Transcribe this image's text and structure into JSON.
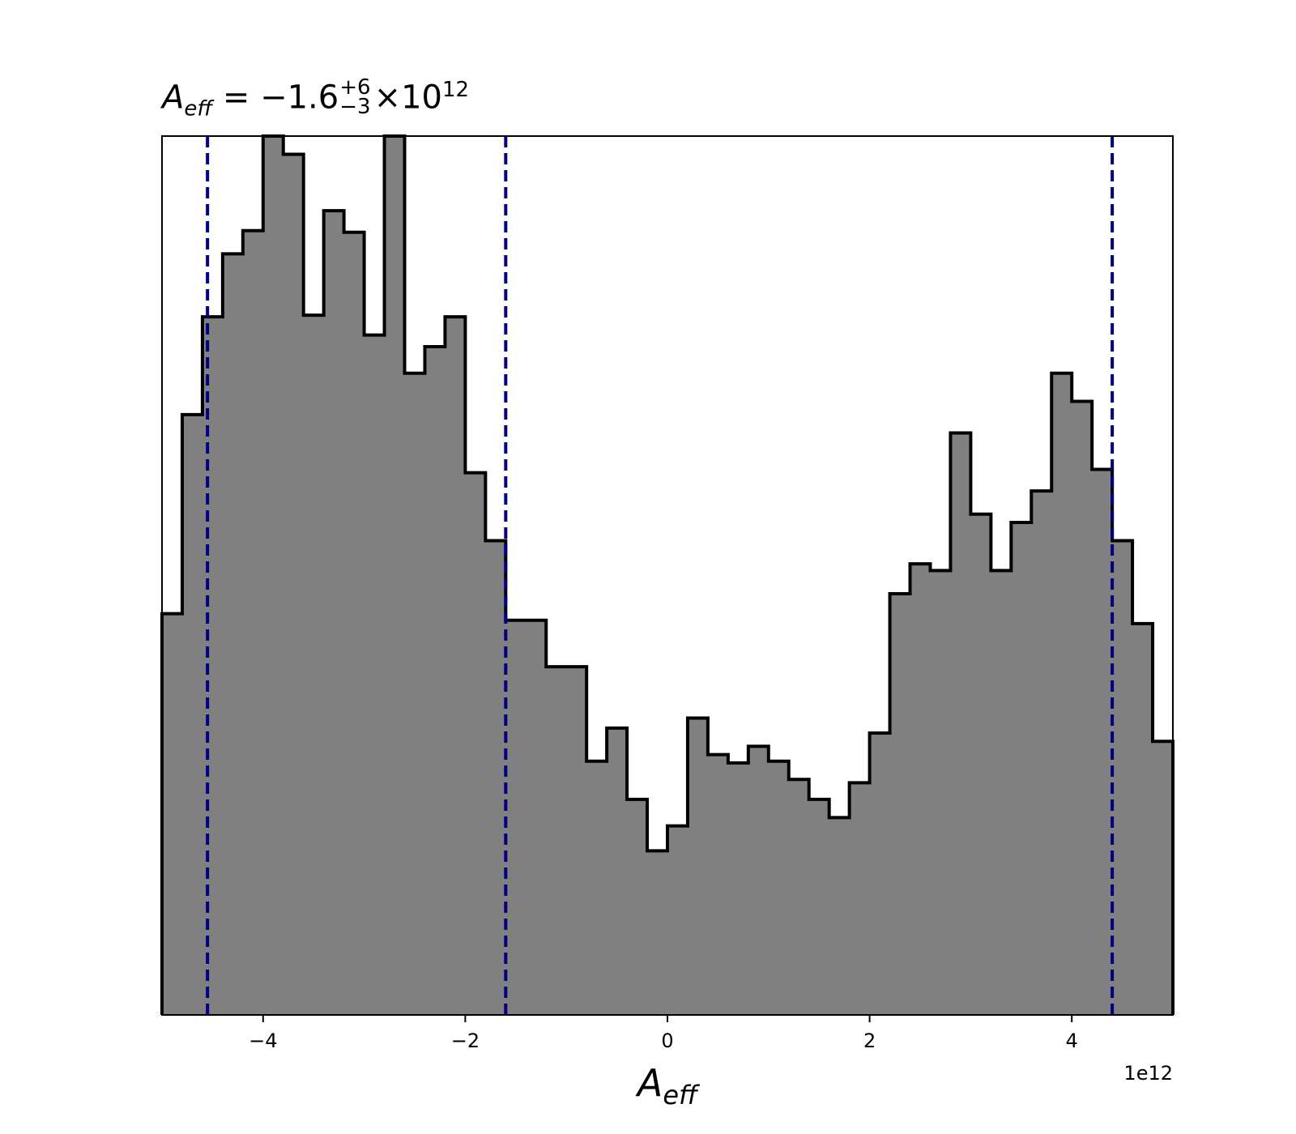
{
  "title": {
    "symbol": "A",
    "symbol_sub": "eff",
    "equals": " = ",
    "value": "−1.6",
    "upper_err": "+6",
    "lower_err": "−3",
    "times": "×10",
    "exponent": "12"
  },
  "chart_data": {
    "type": "histogram",
    "xlabel": {
      "symbol": "A",
      "sub": "eff"
    },
    "offset_label": "1e12",
    "xlim": [
      -5,
      5
    ],
    "ylim": [
      0,
      5.3
    ],
    "grid": false,
    "bin_edges": [
      -5.0,
      -4.8,
      -4.6,
      -4.4,
      -4.2,
      -4.0,
      -3.8,
      -3.6,
      -3.4,
      -3.2,
      -3.0,
      -2.8,
      -2.6,
      -2.4,
      -2.2,
      -2.0,
      -1.8,
      -1.6,
      -1.4,
      -1.2,
      -1.0,
      -0.8,
      -0.6,
      -0.4,
      -0.2,
      0.0,
      0.2,
      0.4,
      0.6,
      0.8,
      1.0,
      1.2,
      1.4,
      1.6,
      1.8,
      2.0,
      2.2,
      2.4,
      2.6,
      2.8,
      3.0,
      3.2,
      3.4,
      3.6,
      3.8,
      4.0,
      4.2,
      4.4,
      4.6,
      4.8,
      5.0
    ],
    "counts": [
      2.42,
      3.62,
      4.21,
      4.59,
      4.73,
      5.3,
      5.19,
      4.22,
      4.85,
      4.72,
      4.1,
      5.3,
      3.87,
      4.03,
      4.21,
      3.27,
      2.86,
      2.38,
      2.38,
      2.1,
      2.1,
      1.53,
      1.73,
      1.3,
      0.99,
      1.14,
      1.79,
      1.57,
      1.52,
      1.62,
      1.53,
      1.42,
      1.3,
      1.19,
      1.4,
      1.7,
      2.54,
      2.72,
      2.68,
      3.51,
      3.02,
      2.68,
      2.97,
      3.16,
      3.87,
      3.7,
      3.29,
      2.86,
      2.36,
      1.65
    ],
    "fill_color": "#808080",
    "edge_color": "#000000",
    "vlines": {
      "x": [
        -4.55,
        -1.6,
        4.4
      ],
      "color": "#000080",
      "style": "dashed"
    },
    "xticks": [
      -4,
      -2,
      0,
      2,
      4
    ],
    "xtick_labels": [
      "−4",
      "−2",
      "0",
      "2",
      "4"
    ]
  }
}
